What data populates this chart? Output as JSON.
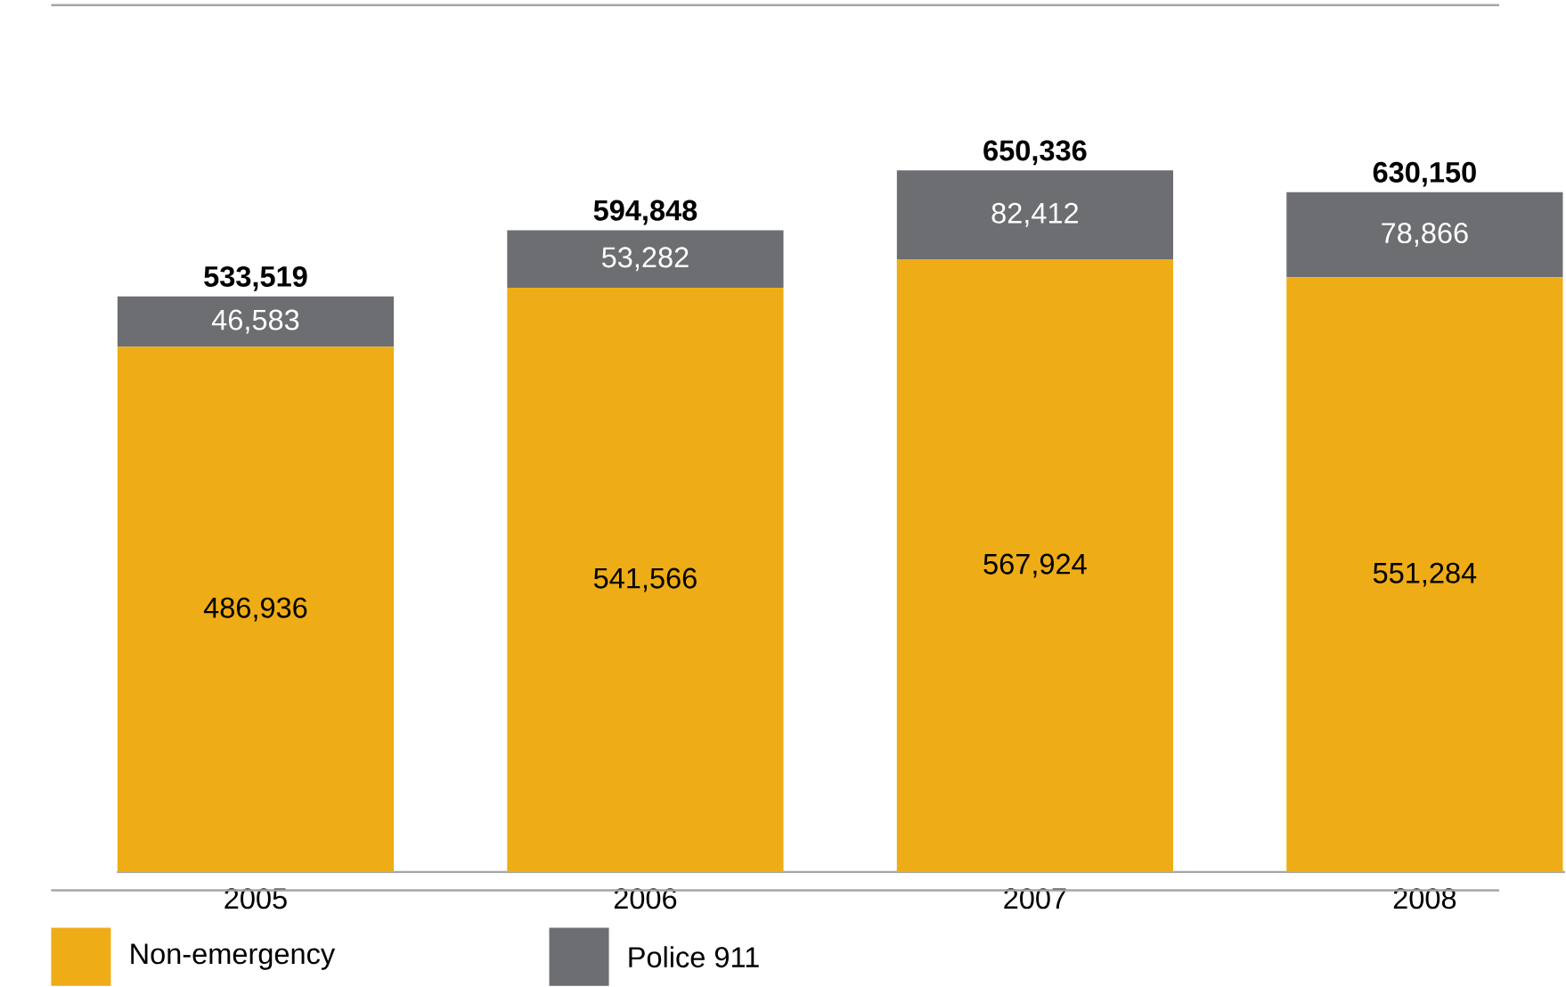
{
  "chart_data": {
    "type": "bar",
    "stacked": true,
    "categories": [
      "2005",
      "2006",
      "2007",
      "2008"
    ],
    "series": [
      {
        "name": "Non-emergency",
        "color": "#eeac16",
        "values": [
          486936,
          541566,
          567924,
          551284
        ],
        "value_labels": [
          "486,936",
          "541,566",
          "567,924",
          "551,284"
        ]
      },
      {
        "name": "Police 911",
        "color": "#6d6e71",
        "values": [
          46583,
          53282,
          82412,
          78866
        ],
        "value_labels": [
          "46,583",
          "53,282",
          "82,412",
          "78,866"
        ]
      }
    ],
    "totals": [
      "533,519",
      "594,848",
      "650,336",
      "630,150"
    ],
    "legend": "bottom"
  }
}
